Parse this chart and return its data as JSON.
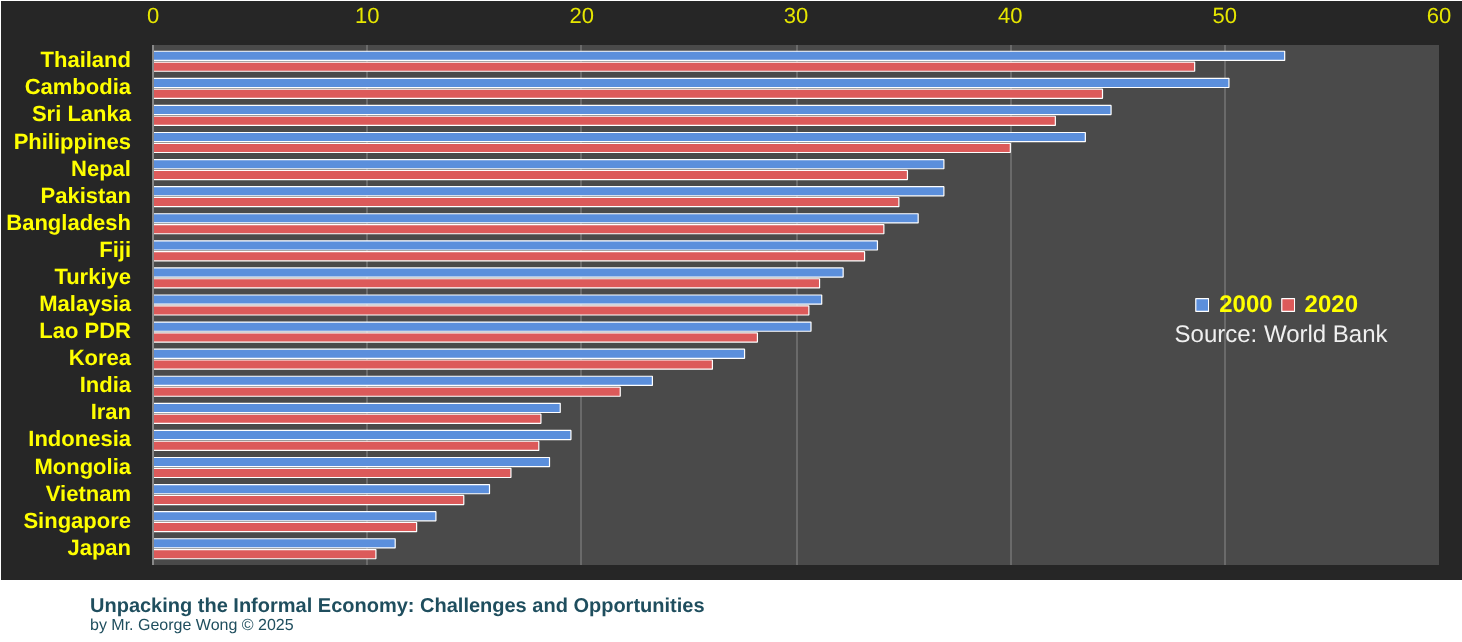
{
  "chart_data": {
    "type": "bar",
    "orientation": "horizontal",
    "categories": [
      "Thailand",
      "Cambodia",
      "Sri Lanka",
      "Philippines",
      "Nepal",
      "Pakistan",
      "Bangladesh",
      "Fiji",
      "Turkiye",
      "Malaysia",
      "Lao PDR",
      "Korea",
      "India",
      "Iran",
      "Indonesia",
      "Mongolia",
      "Vietnam",
      "Singapore",
      "Japan"
    ],
    "series": [
      {
        "name": "2000",
        "color": "#5b8fdc",
        "values": [
          52.8,
          50.2,
          44.7,
          43.5,
          36.9,
          36.9,
          35.7,
          33.8,
          32.2,
          31.2,
          30.7,
          27.6,
          23.3,
          19.0,
          19.5,
          18.5,
          15.7,
          13.2,
          11.3
        ]
      },
      {
        "name": "2020",
        "color": "#dc5a5a",
        "values": [
          48.6,
          44.3,
          42.1,
          40.0,
          35.2,
          34.8,
          34.1,
          33.2,
          31.1,
          30.6,
          28.2,
          26.1,
          21.8,
          18.1,
          18.0,
          16.7,
          14.5,
          12.3,
          10.4
        ]
      }
    ],
    "xlim": [
      0,
      60
    ],
    "xticks": [
      0,
      10,
      20,
      30,
      40,
      50,
      60
    ],
    "grid": "x",
    "legend": "right",
    "annotations": [
      "Source: World Bank",
      "Unpacking the Informal Economy: Challenges and Opportunities",
      "by Mr. George Wong © 2025"
    ]
  }
}
